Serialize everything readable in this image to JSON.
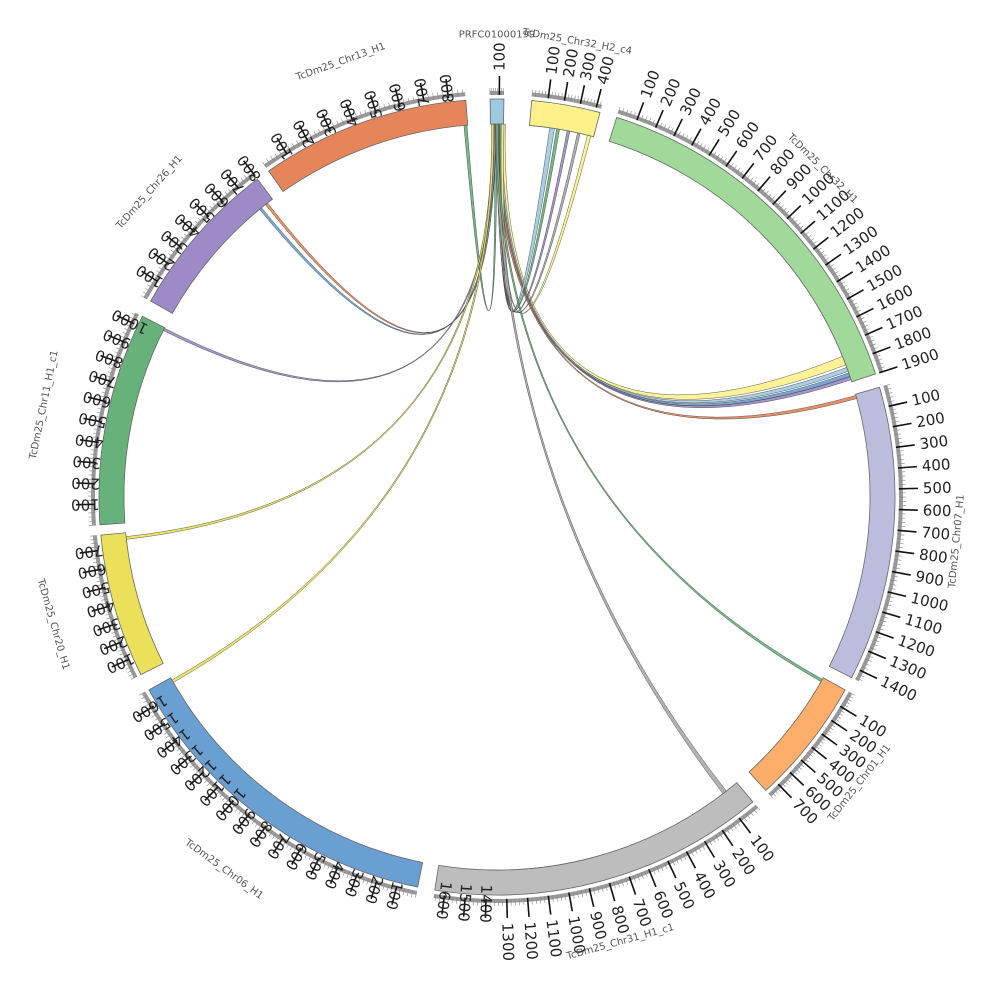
{
  "chart_data": {
    "type": "chord",
    "segments": [
      {
        "name": "PRFC01000199",
        "length": 150,
        "start_deg": 359.0,
        "end_deg": 1.0,
        "color": "#9ecae1"
      },
      {
        "name": "TcDm25_Chr32_H2_c4",
        "length": 430,
        "start_deg": 5.0,
        "end_deg": 15.0,
        "color": "#fef18c"
      },
      {
        "name": "TcDm25_Chr32_H1",
        "length": 1900,
        "start_deg": 17.5,
        "end_deg": 72.0,
        "color": "#a1d99b"
      },
      {
        "name": "TcDm25_Chr07_H1",
        "length": 1450,
        "start_deg": 74.0,
        "end_deg": 117.0,
        "color": "#bcbddc"
      },
      {
        "name": "TcDm25_Chr01_H1",
        "length": 780,
        "start_deg": 119.0,
        "end_deg": 137.5,
        "color": "#fdae6b"
      },
      {
        "name": "TcDm25_Chr31_H1_c1",
        "length": 1650,
        "start_deg": 140.0,
        "end_deg": 189.0,
        "color": "#bdbdbd"
      },
      {
        "name": "TcDm25_Chr06_H1",
        "length": 1680,
        "start_deg": 191.5,
        "end_deg": 241.0,
        "color": "#6a9fd1"
      },
      {
        "name": "TcDm25_Chr20_H1",
        "length": 780,
        "start_deg": 243.5,
        "end_deg": 264.5,
        "color": "#ebe05a"
      },
      {
        "name": "TcDm25_Chr11_H1_c1",
        "length": 1050,
        "start_deg": 266.0,
        "end_deg": 297.0,
        "color": "#66b27a"
      },
      {
        "name": "TcDm25_Chr26_H1",
        "length": 800,
        "start_deg": 299.5,
        "end_deg": 323.0,
        "color": "#9d8ac7"
      },
      {
        "name": "TcDm25_Chr13_H1",
        "length": 870,
        "start_deg": 325.0,
        "end_deg": 355.5,
        "color": "#e6845a"
      }
    ],
    "links": [
      {
        "from": "PRFC01000199",
        "from_pos": 140,
        "to": "TcDm25_Chr32_H1",
        "to_pos": 1780,
        "color": "#fef18c",
        "width": 16
      },
      {
        "from": "PRFC01000199",
        "from_pos": 120,
        "to": "TcDm25_Chr32_H1",
        "to_pos": 1830,
        "color": "#9ecae1",
        "width": 5
      },
      {
        "from": "PRFC01000199",
        "from_pos": 90,
        "to": "TcDm25_Chr32_H1",
        "to_pos": 1860,
        "color": "#6a9fd1",
        "width": 4
      },
      {
        "from": "PRFC01000199",
        "from_pos": 100,
        "to": "TcDm25_Chr32_H1",
        "to_pos": 1880,
        "color": "#9d8ac7",
        "width": 3
      },
      {
        "from": "PRFC01000199",
        "from_pos": 80,
        "to": "TcDm25_Chr07_H1",
        "to_pos": 15,
        "color": "#e6845a",
        "width": 3
      },
      {
        "from": "PRFC01000199",
        "from_pos": 130,
        "to": "TcDm25_Chr32_H2_c4",
        "to_pos": 150,
        "color": "#9ecae1",
        "width": 8
      },
      {
        "from": "PRFC01000199",
        "from_pos": 110,
        "to": "TcDm25_Chr32_H2_c4",
        "to_pos": 190,
        "color": "#66b27a",
        "width": 3
      },
      {
        "from": "PRFC01000199",
        "from_pos": 95,
        "to": "TcDm25_Chr32_H2_c4",
        "to_pos": 260,
        "color": "#9d8ac7",
        "width": 2
      },
      {
        "from": "PRFC01000199",
        "from_pos": 85,
        "to": "TcDm25_Chr32_H2_c4",
        "to_pos": 330,
        "color": "#aaaaaa",
        "width": 2
      },
      {
        "from": "PRFC01000199",
        "from_pos": 140,
        "to": "TcDm25_Chr32_H2_c4",
        "to_pos": 400,
        "color": "#fef18c",
        "width": 4
      },
      {
        "from": "PRFC01000199",
        "from_pos": 60,
        "to": "TcDm25_Chr13_H1",
        "to_pos": 860,
        "color": "#66b27a",
        "width": 2
      },
      {
        "from": "PRFC01000199",
        "from_pos": 40,
        "to": "TcDm25_Chr26_H1",
        "to_pos": 760,
        "color": "#e6845a",
        "width": 1.5
      },
      {
        "from": "PRFC01000199",
        "from_pos": 45,
        "to": "TcDm25_Chr26_H1",
        "to_pos": 720,
        "color": "#6a9fd1",
        "width": 1.5
      },
      {
        "from": "PRFC01000199",
        "from_pos": 50,
        "to": "TcDm25_Chr11_H1_c1",
        "to_pos": 1040,
        "color": "#9d8ac7",
        "width": 1.5
      },
      {
        "from": "PRFC01000199",
        "from_pos": 30,
        "to": "TcDm25_Chr20_H1",
        "to_pos": 750,
        "color": "#ebe05a",
        "width": 2
      },
      {
        "from": "PRFC01000199",
        "from_pos": 25,
        "to": "TcDm25_Chr06_H1",
        "to_pos": 1660,
        "color": "#ebe05a",
        "width": 2
      },
      {
        "from": "PRFC01000199",
        "from_pos": 70,
        "to": "TcDm25_Chr31_H1_c1",
        "to_pos": 80,
        "color": "#aaaaaa",
        "width": 5
      },
      {
        "from": "PRFC01000199",
        "from_pos": 75,
        "to": "TcDm25_Chr01_H1",
        "to_pos": 20,
        "color": "#66b27a",
        "width": 2
      }
    ],
    "tick_labels_every": 100
  }
}
